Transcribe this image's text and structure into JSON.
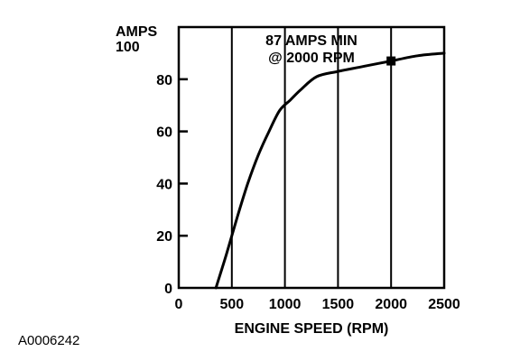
{
  "chart_data": {
    "type": "line",
    "ylabel_line1": "AMPS",
    "xlabel": "ENGINE SPEED (RPM)",
    "xlim": [
      0,
      2500
    ],
    "ylim": [
      0,
      100
    ],
    "x_ticks": [
      0,
      500,
      1000,
      1500,
      2000,
      2500
    ],
    "y_ticks": [
      0,
      20,
      40,
      60,
      80,
      100
    ],
    "grid": "vertical lines at 500-rpm intervals",
    "series": [
      {
        "x": [
          350,
          450,
          550,
          650,
          750,
          850,
          950,
          1050,
          1150,
          1300,
          1500,
          1750,
          2000,
          2250,
          2500
        ],
        "values": [
          0,
          13,
          27,
          40,
          51,
          60,
          68,
          72,
          76,
          81,
          83,
          85,
          87,
          89,
          90
        ]
      }
    ],
    "annotation": {
      "line1": "87 AMPS MIN",
      "line2": "@ 2000 RPM",
      "x": 2000,
      "y": 87
    }
  },
  "reference_code": "A0006242"
}
